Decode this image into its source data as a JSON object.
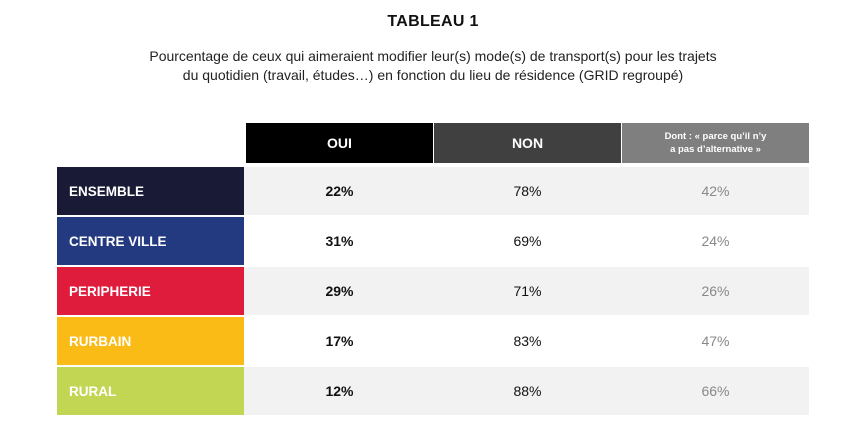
{
  "title": "TABLEAU 1",
  "subtitle_line1": "Pourcentage de ceux qui aimeraient modifier leur(s) mode(s) de transport(s)  pour  les trajets",
  "subtitle_line2": "du quotidien (travail, études…) en fonction du lieu de résidence (GRID regroupé)",
  "columns": [
    {
      "label": "OUI",
      "color": "#000000"
    },
    {
      "label": "NON",
      "color": "#404040"
    },
    {
      "label": "Dont : « parce qu’il n’y a pas d’alternative »",
      "color": "#7f7f7f"
    }
  ],
  "rows": [
    {
      "label": "ENSEMBLE",
      "color": "#191a35",
      "oui": "22%",
      "non": "78%",
      "dont": "42%"
    },
    {
      "label": "CENTRE VILLE",
      "color": "#233a80",
      "oui": "31%",
      "non": "69%",
      "dont": "24%"
    },
    {
      "label": "PERIPHERIE",
      "color": "#e01c3c",
      "oui": "29%",
      "non": "71%",
      "dont": "26%"
    },
    {
      "label": "RURBAIN",
      "color": "#fbbb16",
      "oui": "17%",
      "non": "83%",
      "dont": "47%"
    },
    {
      "label": "RURAL",
      "color": "#c2d653",
      "oui": "12%",
      "non": "88%",
      "dont": "66%"
    }
  ]
}
